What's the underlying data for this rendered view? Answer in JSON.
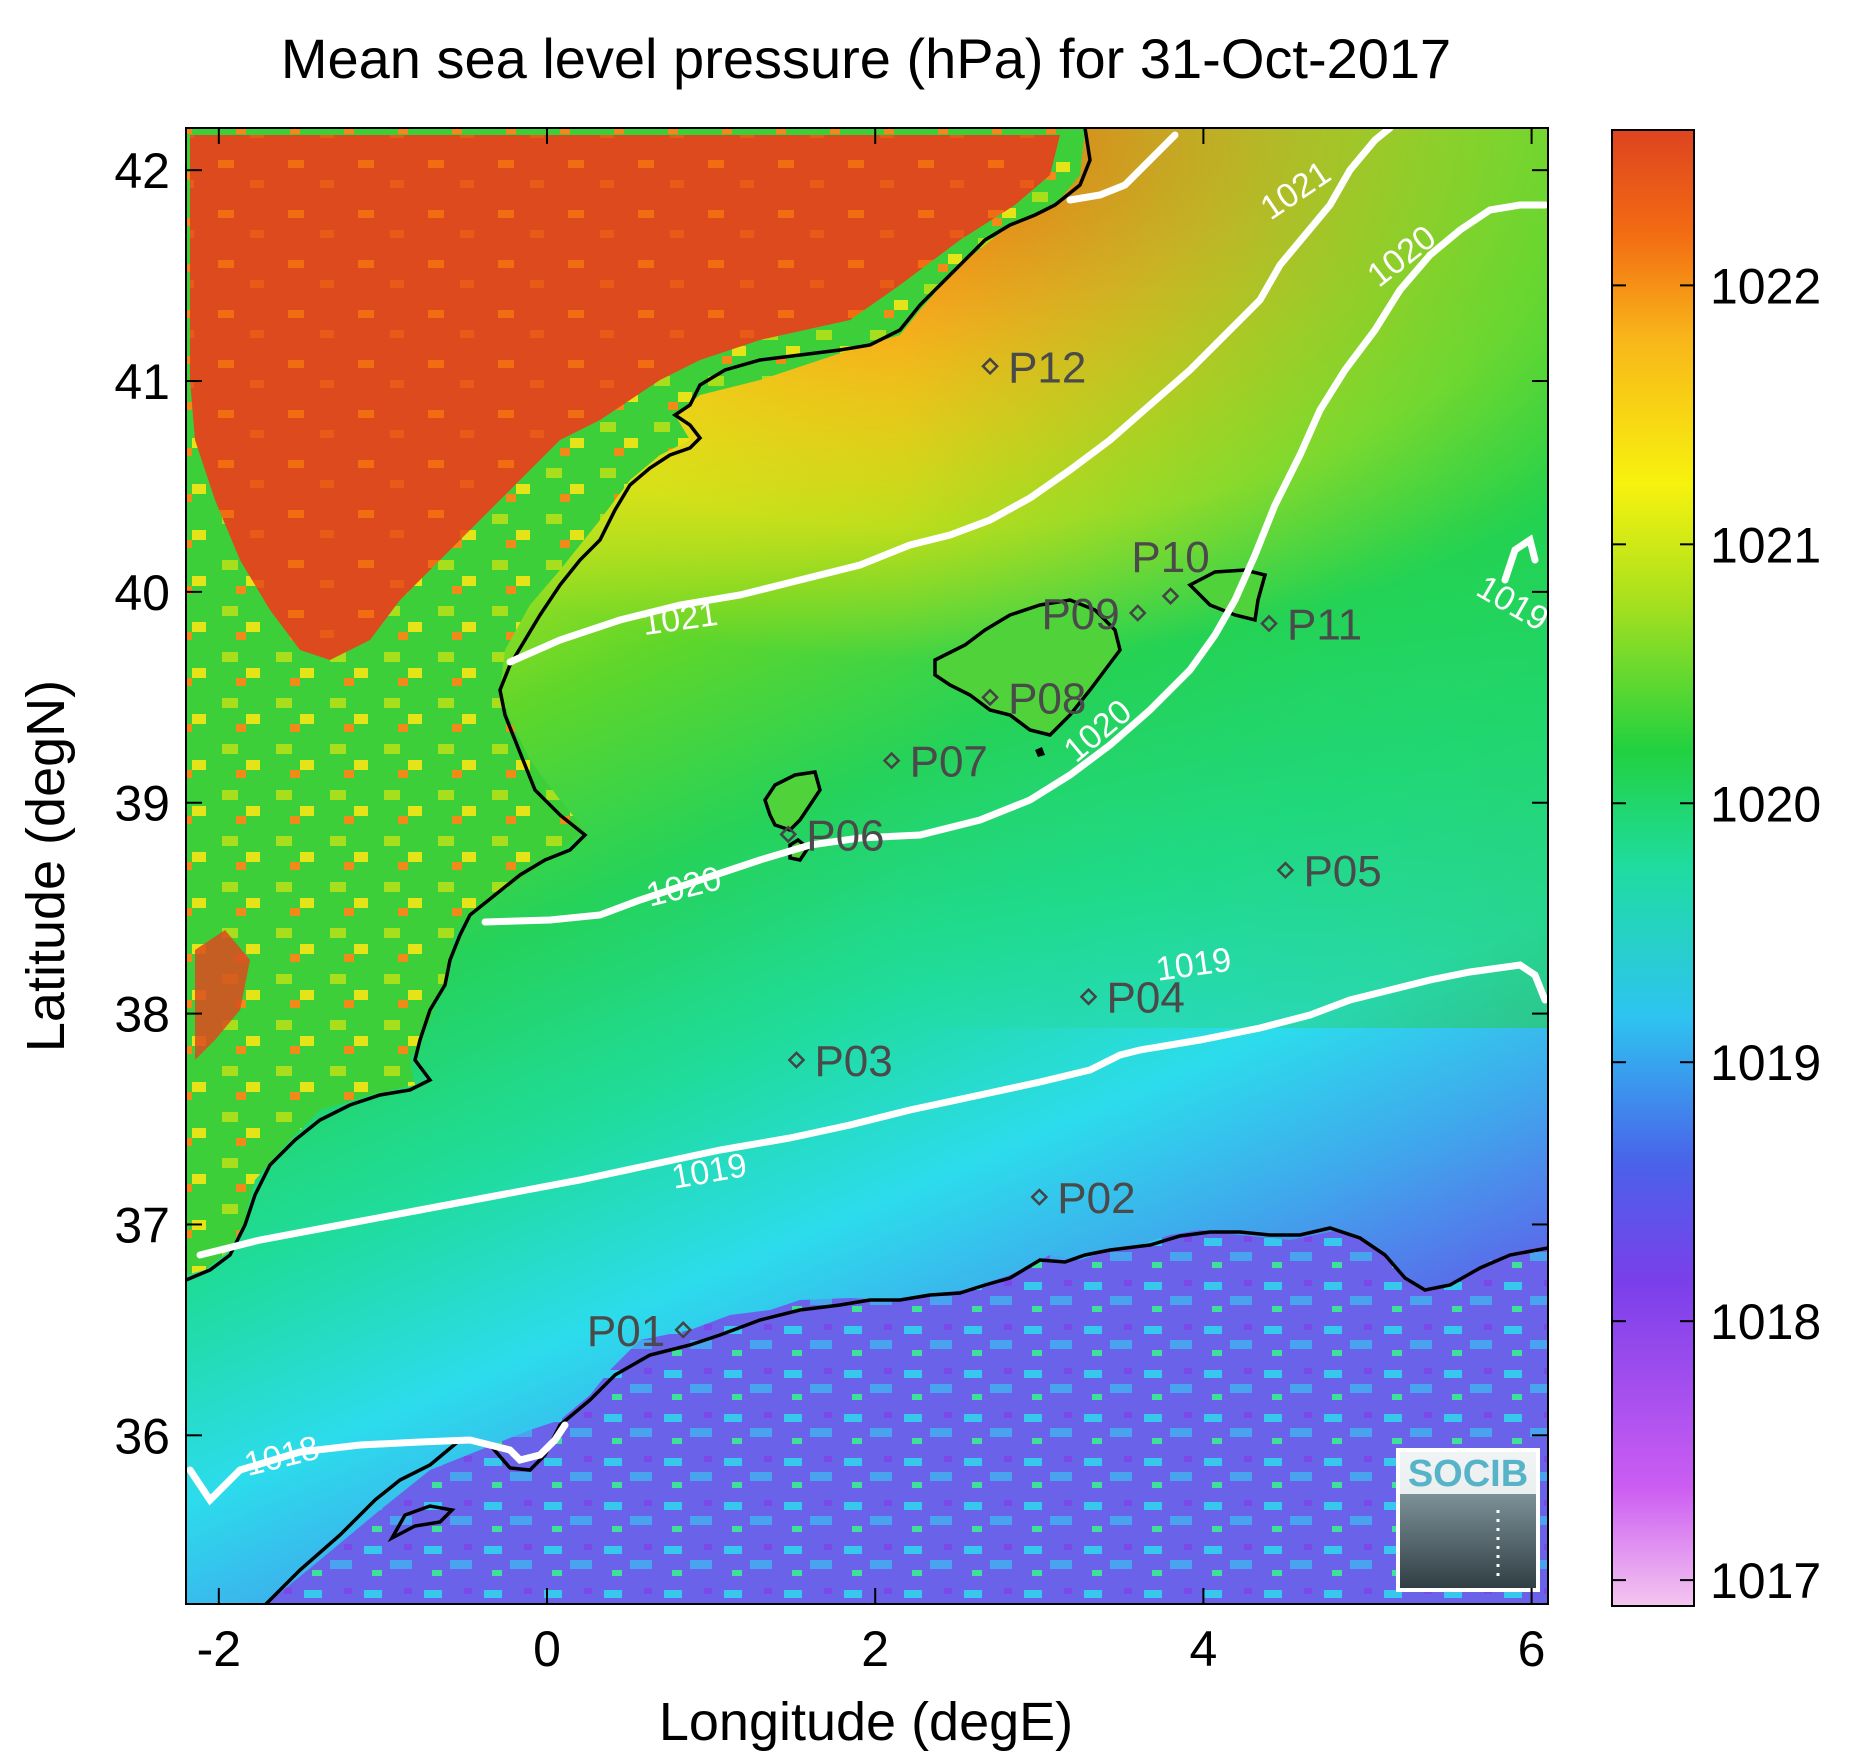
{
  "title": "Mean sea level pressure (hPa) for 31-Oct-2017",
  "xlabel": "Longitude (degE)",
  "ylabel": "Latitude (degN)",
  "x_ticks": [
    "-2",
    "0",
    "2",
    "4",
    "6"
  ],
  "y_ticks": [
    "36",
    "37",
    "38",
    "39",
    "40",
    "41",
    "42"
  ],
  "colorbar": {
    "ticks": [
      "1017",
      "1018",
      "1019",
      "1020",
      "1021",
      "1022"
    ],
    "range": [
      1016.9,
      1022.6
    ],
    "colormap": [
      "#f4c6f0",
      "#a93cf0",
      "#6a46e6",
      "#2bd2f0",
      "#1fd885",
      "#22d140",
      "#a7e01e",
      "#f7f20e",
      "#f8b51a",
      "#f36b12",
      "#dd4420"
    ]
  },
  "chart_data": {
    "type": "heatmap",
    "variable": "Mean sea level pressure",
    "units": "hPa",
    "date": "31-Oct-2017",
    "xlim": [
      -2.2,
      6.1
    ],
    "ylim": [
      35.2,
      42.2
    ],
    "contour_levels": [
      1018,
      1019,
      1020,
      1021
    ],
    "contour_labels": [
      {
        "text": "1018",
        "lon": -1.6,
        "lat": 35.85,
        "angle": -14
      },
      {
        "text": "1019",
        "lon": 1.0,
        "lat": 37.2,
        "angle": -10
      },
      {
        "text": "1019",
        "lon": 3.95,
        "lat": 38.18,
        "angle": -8
      },
      {
        "text": "1019",
        "lon": 5.85,
        "lat": 39.9,
        "angle": 30
      },
      {
        "text": "1020",
        "lon": 0.85,
        "lat": 38.55,
        "angle": -14
      },
      {
        "text": "1020",
        "lon": 3.4,
        "lat": 39.3,
        "angle": -40
      },
      {
        "text": "1020",
        "lon": 5.25,
        "lat": 41.55,
        "angle": -38
      },
      {
        "text": "1021",
        "lon": 0.82,
        "lat": 39.82,
        "angle": -8
      },
      {
        "text": "1021",
        "lon": 4.6,
        "lat": 41.86,
        "angle": -34
      }
    ],
    "stations": [
      {
        "name": "P01",
        "lon": 0.83,
        "lat": 36.5,
        "label_side": "left"
      },
      {
        "name": "P02",
        "lon": 3.0,
        "lat": 37.13,
        "label_side": "right"
      },
      {
        "name": "P03",
        "lon": 1.52,
        "lat": 37.78,
        "label_side": "right"
      },
      {
        "name": "P04",
        "lon": 3.3,
        "lat": 38.08,
        "label_side": "right"
      },
      {
        "name": "P05",
        "lon": 4.5,
        "lat": 38.68,
        "label_side": "right"
      },
      {
        "name": "P06",
        "lon": 1.47,
        "lat": 38.85,
        "label_side": "right"
      },
      {
        "name": "P07",
        "lon": 2.1,
        "lat": 39.2,
        "label_side": "right"
      },
      {
        "name": "P08",
        "lon": 2.7,
        "lat": 39.5,
        "label_side": "right"
      },
      {
        "name": "P09",
        "lon": 3.6,
        "lat": 39.9,
        "label_side": "left"
      },
      {
        "name": "P10",
        "lon": 3.8,
        "lat": 39.98,
        "label_side": "above"
      },
      {
        "name": "P11",
        "lon": 4.4,
        "lat": 39.85,
        "label_side": "right"
      },
      {
        "name": "P12",
        "lon": 2.7,
        "lat": 41.07,
        "label_side": "right"
      }
    ]
  },
  "logo": {
    "text": "SOCIB"
  }
}
